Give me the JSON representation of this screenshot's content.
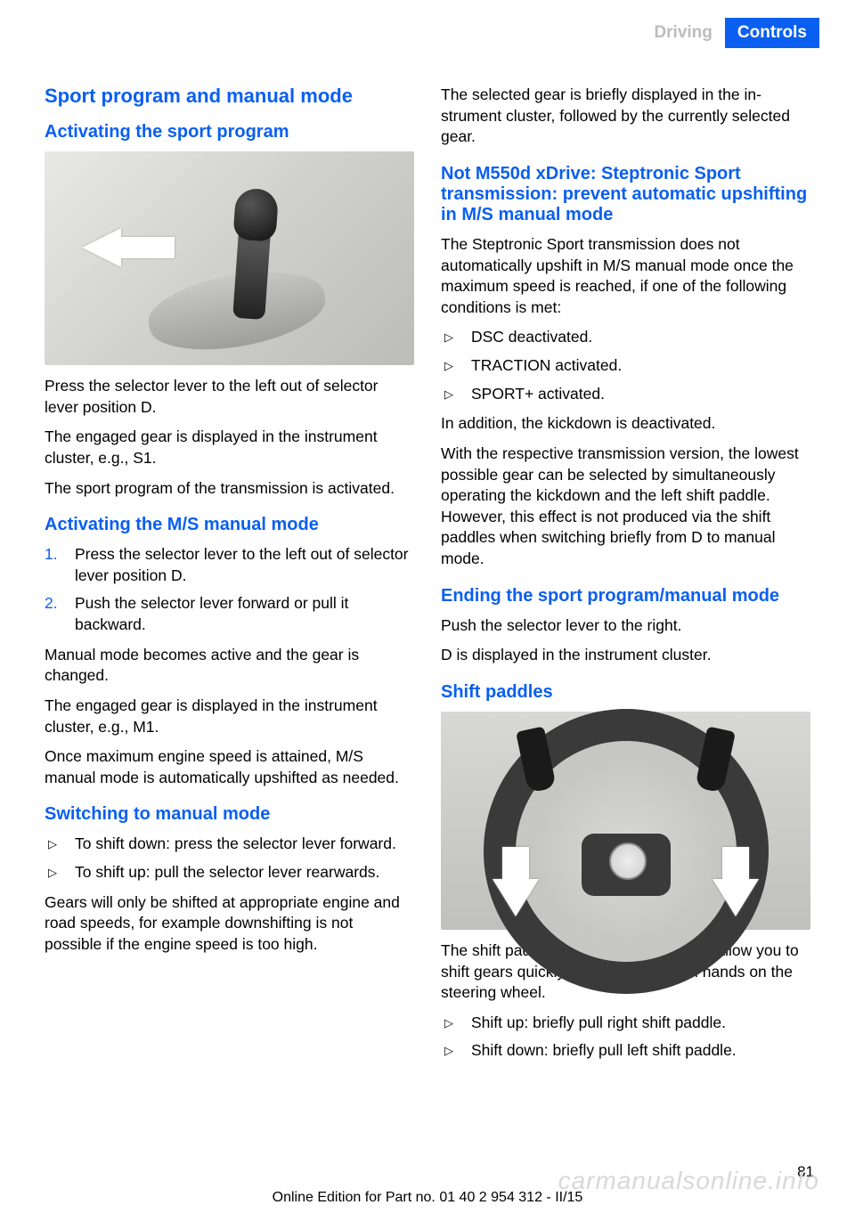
{
  "header": {
    "section": "Driving",
    "chapter": "Controls"
  },
  "left": {
    "h1": "Sport program and manual mode",
    "h2a": "Activating the sport program",
    "p1": "Press the selector lever to the left out of selec­tor lever position D.",
    "p2": "The engaged gear is displayed in the instru­ment cluster, e.g., S1.",
    "p3": "The sport program of the transmission is acti­vated.",
    "h2b": "Activating the M/S manual mode",
    "ol1": {
      "n1": "1.",
      "t1": "Press the selector lever to the left out of selector lever position D.",
      "n2": "2.",
      "t2": "Push the selector lever forward or pull it backward."
    },
    "p4": "Manual mode becomes active and the gear is changed.",
    "p5": "The engaged gear is displayed in the instru­ment cluster, e.g., M1.",
    "p6": "Once maximum engine speed is attained, M/S manual mode is automatically upshifted as needed.",
    "h2c": "Switching to manual mode",
    "ul1": {
      "t1": "To shift down: press the selector lever for­ward.",
      "t2": "To shift up: pull the selector lever rear­wards."
    },
    "p7": "Gears will only be shifted at appropriate engine and road speeds, for example downshifting is not possible if the engine speed is too high."
  },
  "right": {
    "p1": "The selected gear is briefly displayed in the in­strument cluster, followed by the currently se­lected gear.",
    "h2a": "Not M550d xDrive: Steptronic Sport transmission: prevent automatic upshifting in M/S manual mode",
    "p2": "The Steptronic Sport transmission does not automatically upshift in M/S manual mode once the maximum speed is reached, if one of the following conditions is met:",
    "ul1": {
      "t1": "DSC deactivated.",
      "t2": "TRACTION activated.",
      "t3": "SPORT+ activated."
    },
    "p3": "In addition, the kickdown is deactivated.",
    "p4": "With the respective transmission version, the lowest possible gear can be selected by simul­taneously operating the kickdown and the left shift paddle. However, this effect is not pro­duced via the shift paddles when switching briefly from D to manual mode.",
    "h2b": "Ending the sport program/manual mode",
    "p5": "Push the selector lever to the right.",
    "p6": "D is displayed in the instrument cluster.",
    "h2c": "Shift paddles",
    "p7": "The shift paddles on the steering wheel allow you to shift gears quickly while keeping both hands on the steering wheel.",
    "ul2": {
      "t1": "Shift up: briefly pull right shift paddle.",
      "t2": "Shift down: briefly pull left shift paddle."
    }
  },
  "pagenum": "81",
  "footer": "Online Edition for Part no. 01 40 2 954 312 - II/15",
  "watermark": "carmanualsonline.info"
}
